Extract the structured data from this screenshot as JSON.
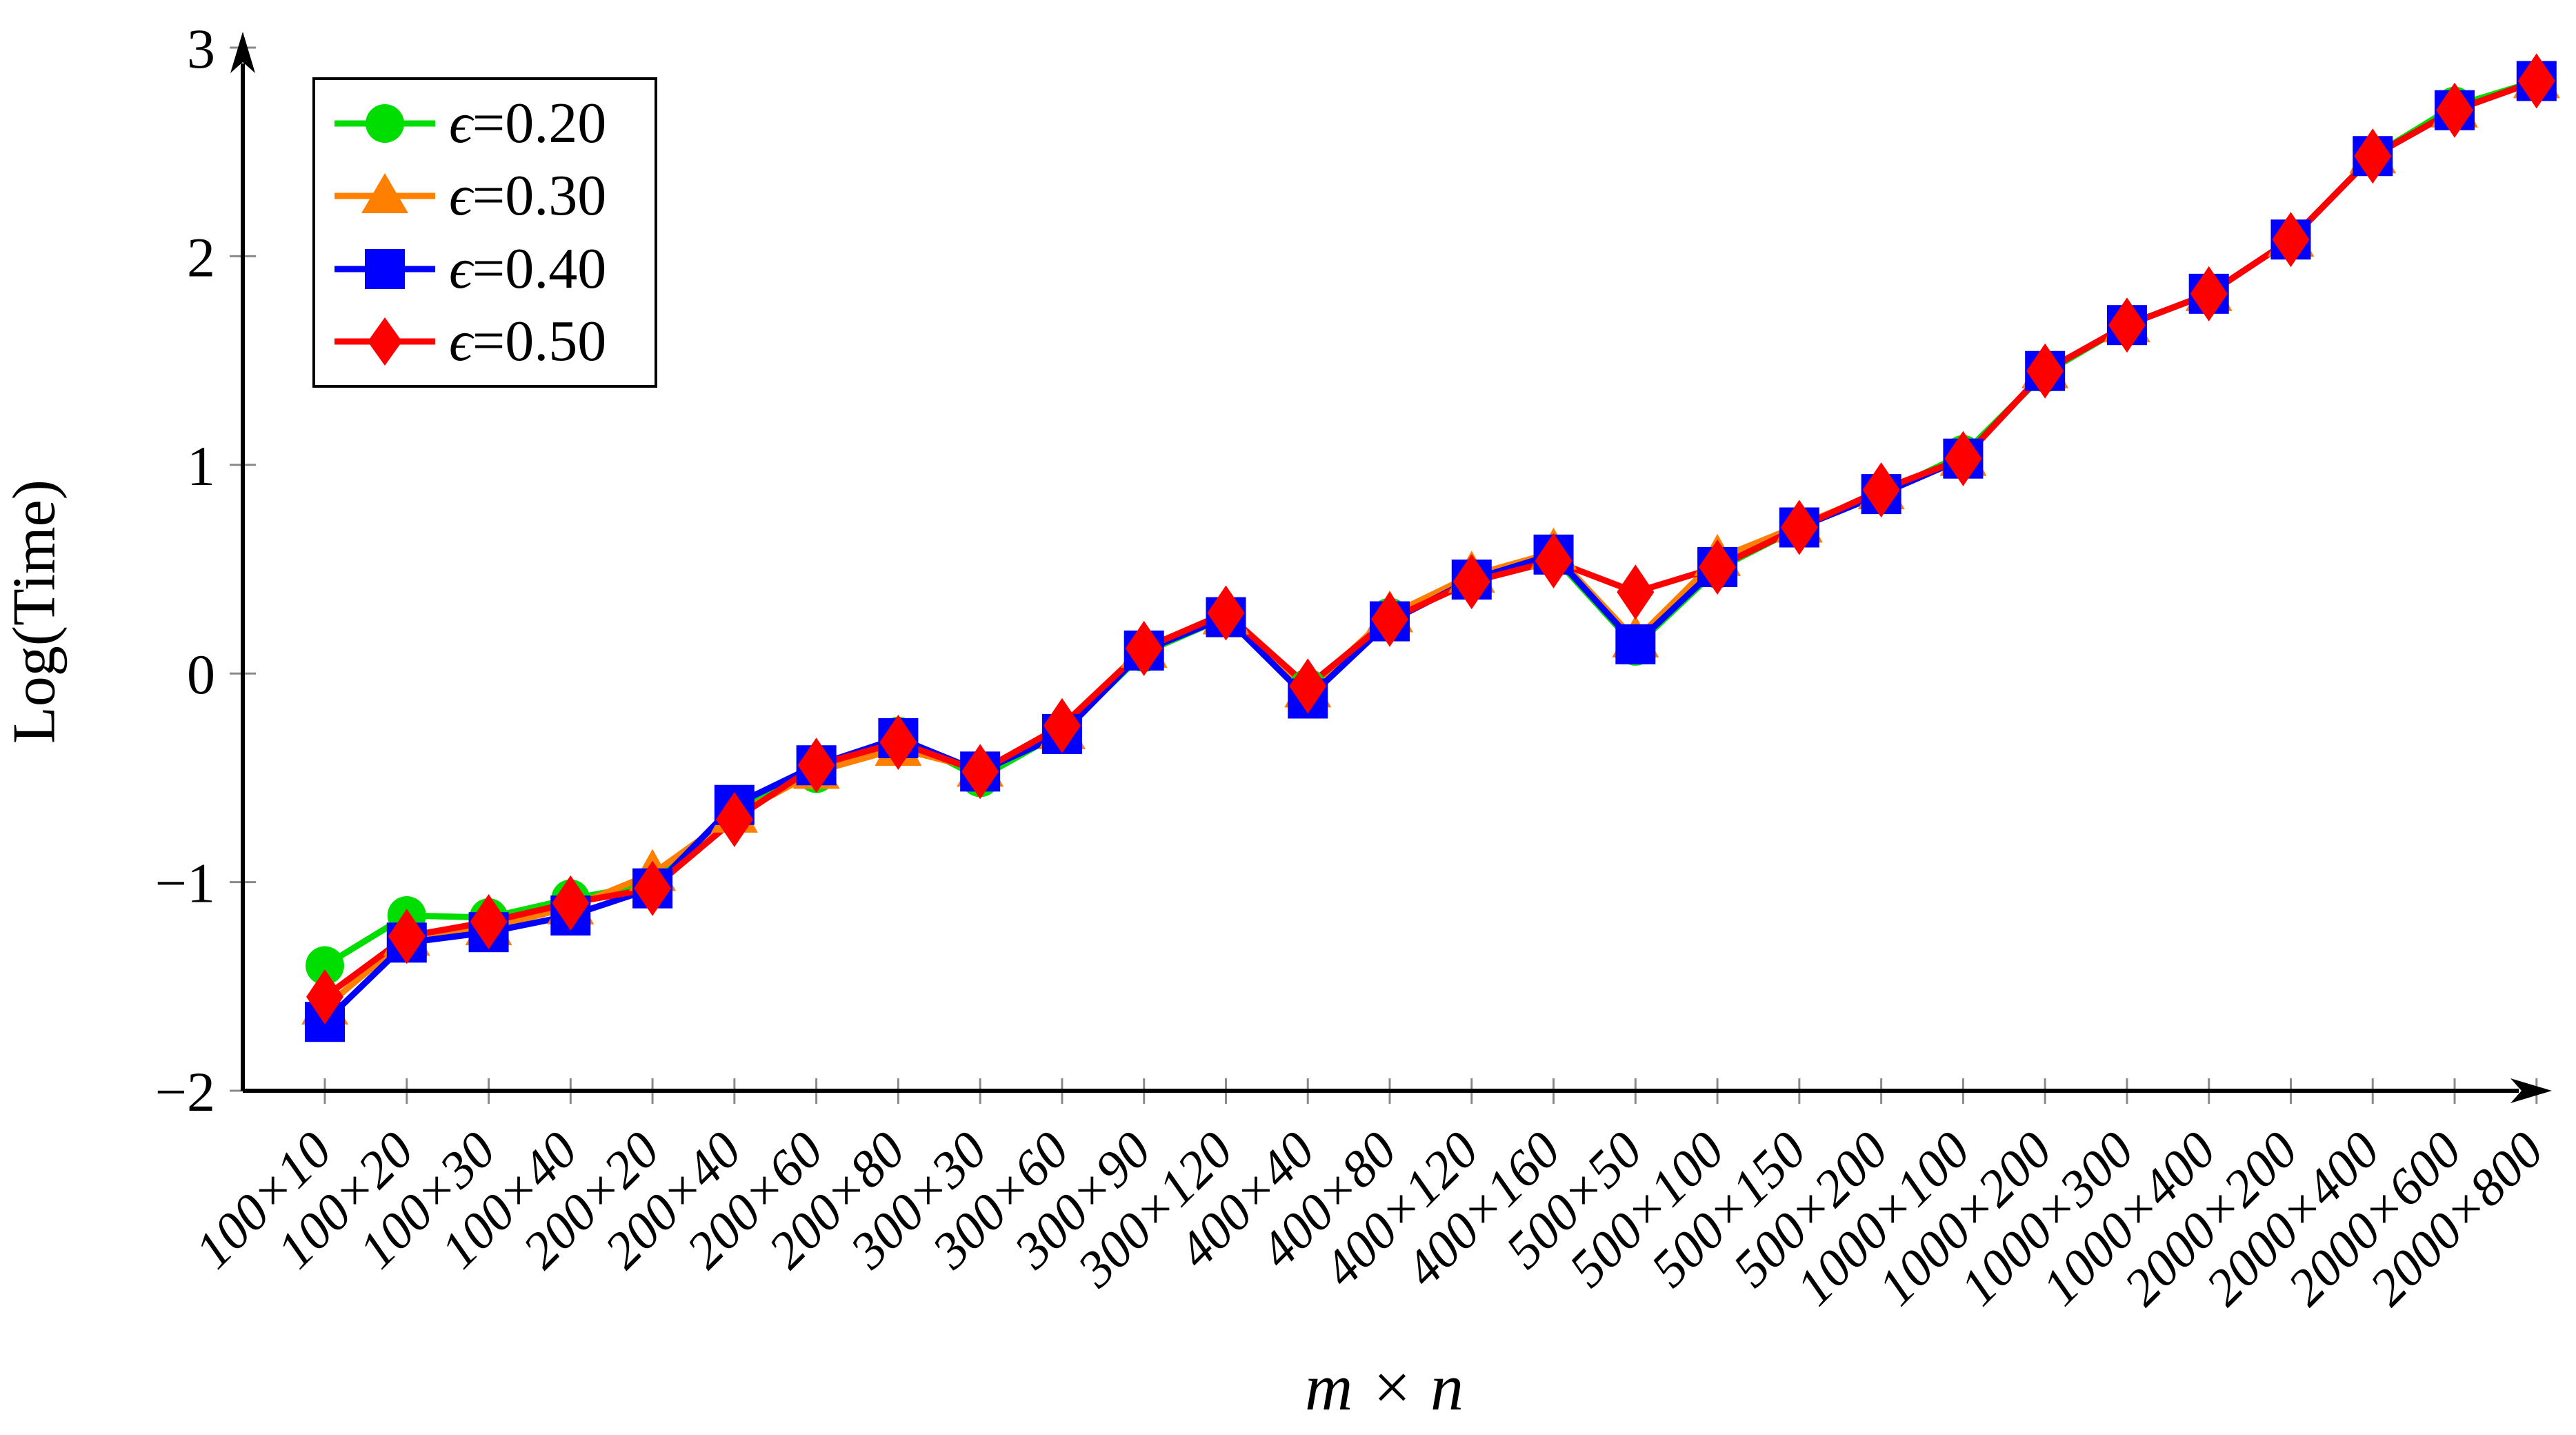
{
  "chart_data": {
    "type": "line",
    "title": "",
    "xlabel": "m × n",
    "ylabel": "Log(Time)",
    "ylim": [
      -2,
      3
    ],
    "grid": false,
    "legend_position": "top-left",
    "y_ticks": [
      {
        "value": -2,
        "label": "−2"
      },
      {
        "value": -1,
        "label": "−1"
      },
      {
        "value": 0,
        "label": "0"
      },
      {
        "value": 1,
        "label": "1"
      },
      {
        "value": 2,
        "label": "2"
      },
      {
        "value": 3,
        "label": "3"
      }
    ],
    "categories": [
      "100×10",
      "100×20",
      "100×30",
      "100×40",
      "200×20",
      "200×40",
      "200×60",
      "200×80",
      "300×30",
      "300×60",
      "300×90",
      "300×120",
      "400×40",
      "400×80",
      "400×120",
      "400×160",
      "500×50",
      "500×100",
      "500×150",
      "500×200",
      "1000×100",
      "1000×200",
      "1000×300",
      "1000×400",
      "2000×200",
      "2000×400",
      "2000×600",
      "2000×800"
    ],
    "series": [
      {
        "label": "ϵ=0.20",
        "name": "epsilon-0.20",
        "color": "#00dd00",
        "marker": "circle",
        "values": [
          -1.4,
          -1.16,
          -1.17,
          -1.08,
          -1.01,
          -0.65,
          -0.48,
          -0.3,
          -0.5,
          -0.28,
          0.1,
          0.27,
          -0.07,
          0.27,
          0.45,
          0.56,
          0.13,
          0.5,
          0.7,
          0.86,
          1.05,
          1.44,
          1.67,
          1.82,
          2.08,
          2.48,
          2.72,
          2.84
        ]
      },
      {
        "label": "ϵ=0.30",
        "name": "epsilon-0.30",
        "color": "#ff8000",
        "marker": "triangle",
        "values": [
          -1.6,
          -1.27,
          -1.22,
          -1.12,
          -0.96,
          -0.68,
          -0.47,
          -0.36,
          -0.46,
          -0.28,
          0.11,
          0.27,
          -0.08,
          0.28,
          0.47,
          0.58,
          0.16,
          0.55,
          0.71,
          0.87,
          1.03,
          1.45,
          1.67,
          1.82,
          2.08,
          2.48,
          2.7,
          2.84
        ]
      },
      {
        "label": "ϵ=0.40",
        "name": "epsilon-0.40",
        "color": "#0000ff",
        "marker": "square",
        "values": [
          -1.67,
          -1.29,
          -1.24,
          -1.16,
          -1.03,
          -0.63,
          -0.44,
          -0.31,
          -0.47,
          -0.29,
          0.11,
          0.27,
          -0.12,
          0.25,
          0.45,
          0.57,
          0.14,
          0.51,
          0.7,
          0.86,
          1.03,
          1.45,
          1.67,
          1.82,
          2.08,
          2.48,
          2.7,
          2.84
        ]
      },
      {
        "label": "ϵ=0.50",
        "name": "epsilon-0.50",
        "color": "#ff0000",
        "marker": "diamond",
        "values": [
          -1.55,
          -1.26,
          -1.19,
          -1.1,
          -1.03,
          -0.7,
          -0.44,
          -0.33,
          -0.47,
          -0.25,
          0.12,
          0.29,
          -0.06,
          0.26,
          0.44,
          0.54,
          0.39,
          0.51,
          0.7,
          0.88,
          1.03,
          1.45,
          1.67,
          1.82,
          2.08,
          2.48,
          2.7,
          2.84
        ]
      }
    ],
    "axis_color": "#000000",
    "tick_color": "#8a8a8a",
    "background": "#ffffff"
  }
}
